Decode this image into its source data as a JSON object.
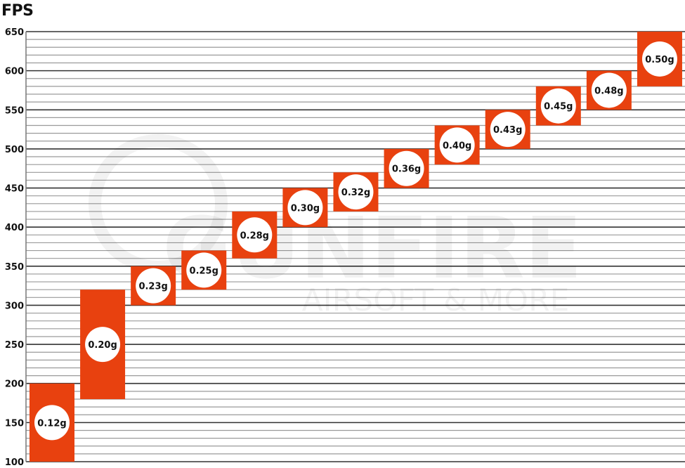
{
  "chart_data": {
    "type": "bar",
    "subtype": "floating-range",
    "title": "",
    "ylabel": "FPS",
    "xlabel": "",
    "ylim": [
      100,
      650
    ],
    "yticks": [
      100,
      150,
      200,
      250,
      300,
      350,
      400,
      450,
      500,
      550,
      600,
      650
    ],
    "minor_grid_step": 10,
    "grid": true,
    "bar_color": "#e8410f",
    "categories": [
      "0.12g",
      "0.20g",
      "0.23g",
      "0.25g",
      "0.28g",
      "0.30g",
      "0.32g",
      "0.36g",
      "0.40g",
      "0.43g",
      "0.45g",
      "0.48g",
      "0.50g"
    ],
    "ranges": [
      [
        100,
        200
      ],
      [
        180,
        320
      ],
      [
        300,
        350
      ],
      [
        320,
        370
      ],
      [
        360,
        420
      ],
      [
        400,
        450
      ],
      [
        420,
        470
      ],
      [
        450,
        500
      ],
      [
        480,
        530
      ],
      [
        500,
        550
      ],
      [
        530,
        580
      ],
      [
        550,
        600
      ],
      [
        580,
        650
      ]
    ]
  },
  "watermark": {
    "brand": "GUNFIRE",
    "tagline": "AIRSOFT & MORE",
    "mark": "®"
  }
}
